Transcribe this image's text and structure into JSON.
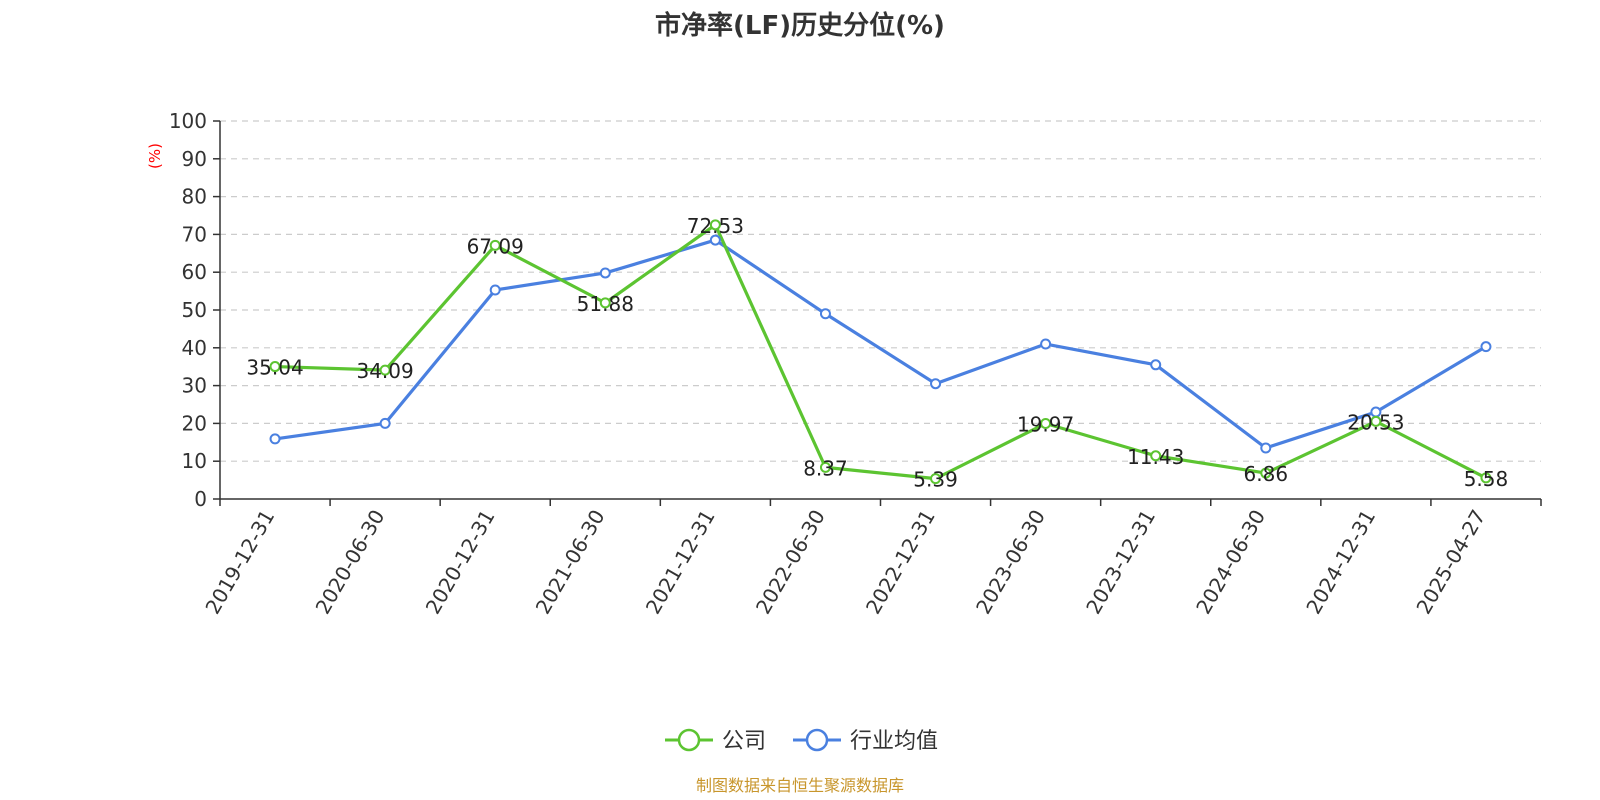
{
  "chart_data": {
    "type": "line",
    "title": "市净率(LF)历史分位(%)",
    "ylabel": "(%)",
    "ylabel_color": "#ff0000",
    "ylim": [
      0,
      100
    ],
    "yticks": [
      0,
      10,
      20,
      30,
      40,
      50,
      60,
      70,
      80,
      90,
      100
    ],
    "grid": true,
    "categories": [
      "2019-12-31",
      "2020-06-30",
      "2020-12-31",
      "2021-06-30",
      "2021-12-31",
      "2022-06-30",
      "2022-12-31",
      "2023-06-30",
      "2023-12-31",
      "2024-06-30",
      "2024-12-31",
      "2025-04-27"
    ],
    "series": [
      {
        "name": "公司",
        "color": "#5cc431",
        "values": [
          35.04,
          34.09,
          67.09,
          51.88,
          72.53,
          8.37,
          5.39,
          19.97,
          11.43,
          6.86,
          20.53,
          5.58
        ],
        "labels": [
          "35.04",
          "34.09",
          "67.09",
          "51.88",
          "72.53",
          "8.37",
          "5.39",
          "19.97",
          "11.43",
          "6.86",
          "20.53",
          "5.58"
        ],
        "show_labels": true
      },
      {
        "name": "行业均值",
        "color": "#4a80e0",
        "values": [
          15.9,
          20.0,
          55.3,
          59.8,
          68.5,
          49.0,
          30.5,
          41.0,
          35.5,
          13.5,
          23.0,
          40.3
        ],
        "show_labels": false
      }
    ],
    "legend_position": "bottom-center"
  },
  "footer": {
    "source": "制图数据来自恒生聚源数据库",
    "source_color": "#c8962c"
  }
}
